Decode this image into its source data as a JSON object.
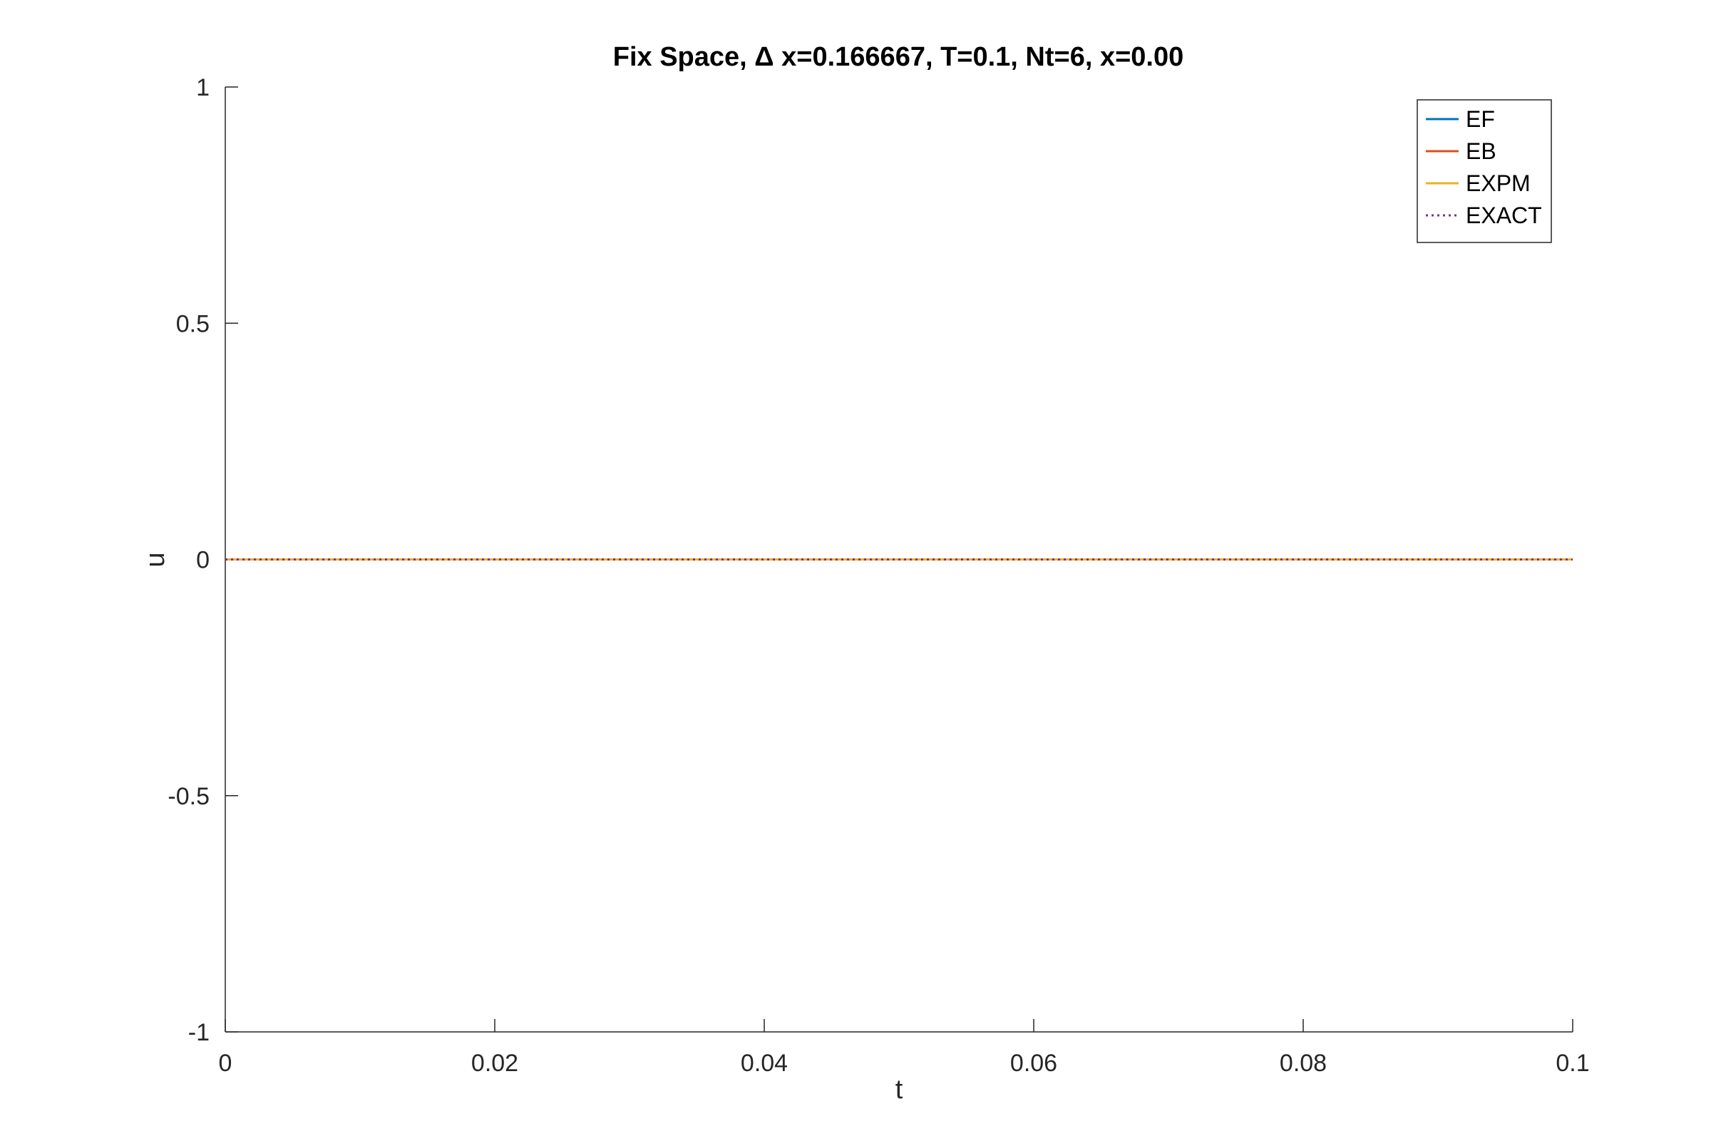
{
  "chart_data": {
    "type": "line",
    "title": "Fix Space, Δ x=0.166667, T=0.1, Nt=6, x=0.00",
    "xlabel": "t",
    "ylabel": "u",
    "xlim": [
      0,
      0.1
    ],
    "ylim": [
      -1,
      1
    ],
    "xticks": [
      0,
      0.02,
      0.04,
      0.06,
      0.08,
      0.1
    ],
    "xtick_labels": [
      "0",
      "0.02",
      "0.04",
      "0.06",
      "0.08",
      "0.1"
    ],
    "yticks": [
      -1,
      -0.5,
      0,
      0.5,
      1
    ],
    "ytick_labels": [
      "-1",
      "-0.5",
      "0",
      "0.5",
      "1"
    ],
    "grid": false,
    "legend_position": "top-right",
    "x": [
      0,
      0.016667,
      0.033333,
      0.05,
      0.066667,
      0.083333,
      0.1
    ],
    "series": [
      {
        "name": "EF",
        "color": "#0072BD",
        "style": "solid",
        "values": [
          0,
          0,
          0,
          0,
          0,
          0,
          0
        ]
      },
      {
        "name": "EB",
        "color": "#D95319",
        "style": "solid",
        "values": [
          0,
          0,
          0,
          0,
          0,
          0,
          0
        ]
      },
      {
        "name": "EXPM",
        "color": "#EDB120",
        "style": "solid",
        "values": [
          0,
          0,
          0,
          0,
          0,
          0,
          0
        ]
      },
      {
        "name": "EXACT",
        "color": "#7E2F8E",
        "style": "dotted",
        "values": [
          0,
          0,
          0,
          0,
          0,
          0,
          0
        ]
      }
    ]
  }
}
